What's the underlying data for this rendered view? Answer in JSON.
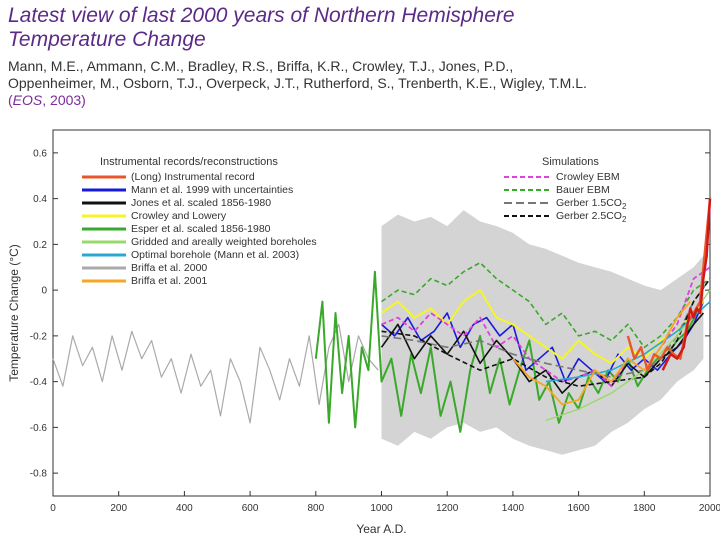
{
  "slide": {
    "title_line1": "Latest view of last 2000 years of Northern Hemisphere",
    "title_line2": "Temperature Change",
    "authors_line1": "Mann, M.E., Ammann, C.M., Bradley, R.S., Briffa, K.R., Crowley, T.J., Jones, P.D.,",
    "authors_line2": "Oppenheimer, M., Osborn, T.J., Overpeck, J.T., Rutherford, S., Trenberth, K.E., Wigley, T.M.L.",
    "cite_open": "(",
    "cite_journal": "EOS",
    "cite_year": ", 2003)"
  },
  "chart_data": {
    "type": "line",
    "xlabel": "Year A.D.",
    "ylabel": "Temperature Change (°C)",
    "xlim": [
      0,
      2000
    ],
    "ylim": [
      -0.9,
      0.7
    ],
    "xticks": [
      0,
      200,
      400,
      600,
      800,
      1000,
      1200,
      1400,
      1600,
      1800,
      2000
    ],
    "yticks": [
      -0.8,
      -0.6,
      -0.4,
      -0.2,
      0,
      0.2,
      0.4,
      0.6
    ],
    "legend_left_title": "Instrumental records/reconstructions",
    "legend_right_title": "Simulations",
    "legend_left": [
      {
        "label": "(Long) Instrumental record",
        "color": "#e8572b"
      },
      {
        "label": "Mann et al. 1999 with uncertainties",
        "color": "#1a1adb"
      },
      {
        "label": "Jones et al. scaled 1856-1980",
        "color": "#111111"
      },
      {
        "label": "Crowley and Lowery",
        "color": "#f5f52a"
      },
      {
        "label": "Esper et al. scaled 1856-1980",
        "color": "#3aa82a"
      },
      {
        "label": "Gridded and areally weighted boreholes",
        "color": "#9ad86a"
      },
      {
        "label": "Optimal borehole (Mann et al. 2003)",
        "color": "#29a8d8"
      },
      {
        "label": "Briffa et al. 2000",
        "color": "#aaaaaa"
      },
      {
        "label": "Briffa et al. 2001",
        "color": "#f5a623"
      }
    ],
    "legend_right": [
      {
        "label": "Crowley EBM",
        "color": "#e040e0",
        "dash": "5,3"
      },
      {
        "label": "Bauer EBM",
        "color": "#3aa82a",
        "dash": "5,3"
      },
      {
        "label": "Gerber 1.5CO",
        "sub": "2",
        "color": "#777777",
        "dash": "8,4"
      },
      {
        "label": "Gerber 2.5CO",
        "sub": "2",
        "color": "#111111",
        "dash": "5,3"
      }
    ],
    "uncertainty_band": {
      "x": [
        1000,
        1050,
        1100,
        1150,
        1200,
        1250,
        1300,
        1350,
        1400,
        1450,
        1500,
        1550,
        1600,
        1650,
        1700,
        1750,
        1800,
        1850,
        1900,
        1950,
        1980
      ],
      "upper": [
        0.28,
        0.33,
        0.3,
        0.32,
        0.28,
        0.35,
        0.3,
        0.28,
        0.25,
        0.2,
        0.18,
        0.15,
        0.12,
        0.1,
        0.08,
        0.05,
        0.02,
        0.0,
        0.05,
        0.1,
        0.15
      ],
      "lower": [
        -0.65,
        -0.68,
        -0.62,
        -0.65,
        -0.6,
        -0.58,
        -0.62,
        -0.6,
        -0.65,
        -0.68,
        -0.7,
        -0.72,
        -0.7,
        -0.68,
        -0.62,
        -0.58,
        -0.52,
        -0.48,
        -0.4,
        -0.35,
        -0.3
      ]
    },
    "series": [
      {
        "name": "Briffa et al. 2000",
        "color": "#aaaaaa",
        "width": 1.2,
        "x": [
          0,
          30,
          60,
          90,
          120,
          150,
          180,
          210,
          240,
          270,
          300,
          330,
          360,
          390,
          420,
          450,
          480,
          510,
          540,
          570,
          600,
          630,
          660,
          690,
          720,
          750,
          780,
          810,
          840,
          870,
          900,
          930,
          960,
          990
        ],
        "y": [
          -0.3,
          -0.42,
          -0.2,
          -0.33,
          -0.25,
          -0.4,
          -0.2,
          -0.35,
          -0.18,
          -0.3,
          -0.22,
          -0.38,
          -0.3,
          -0.45,
          -0.28,
          -0.42,
          -0.35,
          -0.55,
          -0.3,
          -0.4,
          -0.58,
          -0.25,
          -0.35,
          -0.48,
          -0.3,
          -0.42,
          -0.2,
          -0.5,
          -0.25,
          -0.15,
          -0.4,
          -0.2,
          -0.3,
          -0.35
        ]
      },
      {
        "name": "Esper et al. scaled 1856-1980",
        "color": "#3aa82a",
        "width": 2,
        "x": [
          800,
          820,
          840,
          860,
          880,
          900,
          920,
          940,
          960,
          980,
          1000,
          1030,
          1060,
          1090,
          1120,
          1150,
          1180,
          1210,
          1240,
          1270,
          1300,
          1330,
          1360,
          1390,
          1420,
          1450,
          1480,
          1510,
          1540,
          1570,
          1600,
          1630,
          1660,
          1690,
          1720,
          1750,
          1780,
          1810,
          1840,
          1870,
          1900,
          1930,
          1960,
          1980
        ],
        "y": [
          -0.3,
          -0.05,
          -0.58,
          -0.1,
          -0.45,
          -0.2,
          -0.6,
          -0.25,
          -0.35,
          0.08,
          -0.4,
          -0.3,
          -0.55,
          -0.28,
          -0.45,
          -0.25,
          -0.55,
          -0.4,
          -0.62,
          -0.35,
          -0.2,
          -0.45,
          -0.3,
          -0.5,
          -0.35,
          -0.22,
          -0.48,
          -0.4,
          -0.58,
          -0.45,
          -0.52,
          -0.38,
          -0.45,
          -0.35,
          -0.4,
          -0.3,
          -0.42,
          -0.35,
          -0.3,
          -0.28,
          -0.22,
          -0.18,
          -0.1,
          -0.05
        ]
      },
      {
        "name": "Bauer EBM",
        "color": "#3aa82a",
        "width": 1.6,
        "dash": "5,3",
        "x": [
          1000,
          1050,
          1100,
          1150,
          1200,
          1250,
          1300,
          1350,
          1400,
          1450,
          1500,
          1550,
          1600,
          1650,
          1700,
          1750,
          1800,
          1850,
          1900,
          1950,
          2000
        ],
        "y": [
          -0.05,
          0.0,
          -0.02,
          0.05,
          0.02,
          0.08,
          0.12,
          0.05,
          0.0,
          -0.05,
          -0.15,
          -0.1,
          -0.2,
          -0.18,
          -0.22,
          -0.15,
          -0.25,
          -0.2,
          -0.12,
          0.0,
          0.05
        ]
      },
      {
        "name": "Mann et al. 1999 with uncertainties",
        "color": "#1a1adb",
        "width": 1.6,
        "x": [
          1000,
          1040,
          1080,
          1120,
          1160,
          1200,
          1240,
          1280,
          1320,
          1360,
          1400,
          1440,
          1480,
          1520,
          1560,
          1600,
          1640,
          1680,
          1720,
          1760,
          1800,
          1840,
          1880,
          1920,
          1950,
          1980
        ],
        "y": [
          -0.15,
          -0.2,
          -0.12,
          -0.22,
          -0.18,
          -0.1,
          -0.25,
          -0.15,
          -0.12,
          -0.2,
          -0.15,
          -0.35,
          -0.3,
          -0.25,
          -0.4,
          -0.3,
          -0.35,
          -0.4,
          -0.28,
          -0.35,
          -0.3,
          -0.35,
          -0.28,
          -0.22,
          -0.15,
          -0.05
        ]
      },
      {
        "name": "Jones et al. scaled 1856-1980",
        "color": "#111111",
        "width": 1.6,
        "x": [
          1000,
          1050,
          1100,
          1150,
          1200,
          1250,
          1300,
          1350,
          1400,
          1450,
          1500,
          1550,
          1600,
          1650,
          1700,
          1750,
          1800,
          1850,
          1900,
          1950,
          1980
        ],
        "y": [
          -0.25,
          -0.15,
          -0.3,
          -0.2,
          -0.28,
          -0.18,
          -0.32,
          -0.22,
          -0.3,
          -0.4,
          -0.35,
          -0.45,
          -0.38,
          -0.35,
          -0.42,
          -0.32,
          -0.38,
          -0.3,
          -0.25,
          -0.15,
          -0.1
        ]
      },
      {
        "name": "Crowley and Lowery",
        "color": "#f5f52a",
        "width": 2,
        "x": [
          1000,
          1050,
          1100,
          1150,
          1200,
          1250,
          1300,
          1350,
          1400,
          1450,
          1500,
          1550,
          1600,
          1650,
          1700,
          1750,
          1800,
          1850,
          1900,
          1950,
          1980
        ],
        "y": [
          -0.1,
          -0.05,
          -0.12,
          -0.08,
          -0.15,
          -0.05,
          0.0,
          -0.12,
          -0.15,
          -0.2,
          -0.25,
          -0.3,
          -0.22,
          -0.28,
          -0.32,
          -0.25,
          -0.3,
          -0.22,
          -0.18,
          -0.1,
          -0.05
        ]
      },
      {
        "name": "Crowley EBM",
        "color": "#e040e0",
        "width": 1.8,
        "dash": "5,3",
        "x": [
          1000,
          1050,
          1100,
          1150,
          1200,
          1250,
          1300,
          1350,
          1400,
          1450,
          1500,
          1550,
          1600,
          1650,
          1700,
          1750,
          1800,
          1850,
          1900,
          1950,
          2000
        ],
        "y": [
          -0.15,
          -0.12,
          -0.18,
          -0.1,
          -0.15,
          -0.2,
          -0.12,
          -0.25,
          -0.2,
          -0.3,
          -0.35,
          -0.4,
          -0.38,
          -0.35,
          -0.42,
          -0.3,
          -0.35,
          -0.25,
          -0.15,
          0.05,
          0.1
        ]
      },
      {
        "name": "Gerber 1.5CO2",
        "color": "#777777",
        "width": 1.6,
        "dash": "8,4",
        "x": [
          1000,
          1100,
          1200,
          1300,
          1400,
          1500,
          1600,
          1700,
          1800,
          1850,
          1900,
          1950,
          2000
        ],
        "y": [
          -0.2,
          -0.22,
          -0.25,
          -0.22,
          -0.28,
          -0.32,
          -0.35,
          -0.38,
          -0.35,
          -0.3,
          -0.2,
          -0.05,
          0.05
        ]
      },
      {
        "name": "Gerber 2.5CO2",
        "color": "#111111",
        "width": 1.6,
        "dash": "5,3",
        "x": [
          1000,
          1100,
          1200,
          1300,
          1400,
          1500,
          1600,
          1700,
          1800,
          1850,
          1900,
          1950,
          2000
        ],
        "y": [
          -0.18,
          -0.2,
          -0.28,
          -0.35,
          -0.3,
          -0.38,
          -0.42,
          -0.4,
          -0.38,
          -0.32,
          -0.22,
          -0.05,
          0.05
        ]
      },
      {
        "name": "Gridded and areally weighted boreholes",
        "color": "#9ad86a",
        "width": 1.4,
        "x": [
          1500,
          1600,
          1700,
          1800,
          1900,
          2000
        ],
        "y": [
          -0.57,
          -0.52,
          -0.45,
          -0.35,
          -0.2,
          0.0
        ]
      },
      {
        "name": "Optimal borehole (Mann et al. 2003)",
        "color": "#29a8d8",
        "width": 1.6,
        "x": [
          1500,
          1600,
          1700,
          1800,
          1900,
          2000
        ],
        "y": [
          -0.4,
          -0.38,
          -0.35,
          -0.28,
          -0.18,
          -0.05
        ]
      },
      {
        "name": "Briffa et al. 2001",
        "color": "#f5a623",
        "width": 1.8,
        "x": [
          1400,
          1450,
          1500,
          1550,
          1600,
          1650,
          1700,
          1750,
          1800,
          1850,
          1900,
          1940
        ],
        "y": [
          -0.3,
          -0.38,
          -0.42,
          -0.5,
          -0.48,
          -0.35,
          -0.4,
          -0.3,
          -0.35,
          -0.25,
          -0.12,
          -0.05
        ]
      },
      {
        "name": "(Long) Instrumental record",
        "color": "#e8572b",
        "width": 2.4,
        "x": [
          1750,
          1770,
          1790,
          1810,
          1830,
          1850,
          1870,
          1890,
          1910,
          1930,
          1950,
          1970,
          1990,
          2000
        ],
        "y": [
          -0.2,
          -0.3,
          -0.25,
          -0.35,
          -0.28,
          -0.3,
          -0.25,
          -0.28,
          -0.3,
          -0.15,
          -0.1,
          -0.05,
          0.25,
          0.4
        ]
      },
      {
        "name": "Instrumental record",
        "color": "#d01818",
        "width": 2.4,
        "x": [
          1856,
          1880,
          1900,
          1920,
          1940,
          1950,
          1960,
          1970,
          1980,
          1990,
          2000
        ],
        "y": [
          -0.35,
          -0.28,
          -0.3,
          -0.25,
          -0.08,
          -0.12,
          -0.08,
          -0.1,
          0.05,
          0.15,
          0.4
        ]
      }
    ]
  }
}
